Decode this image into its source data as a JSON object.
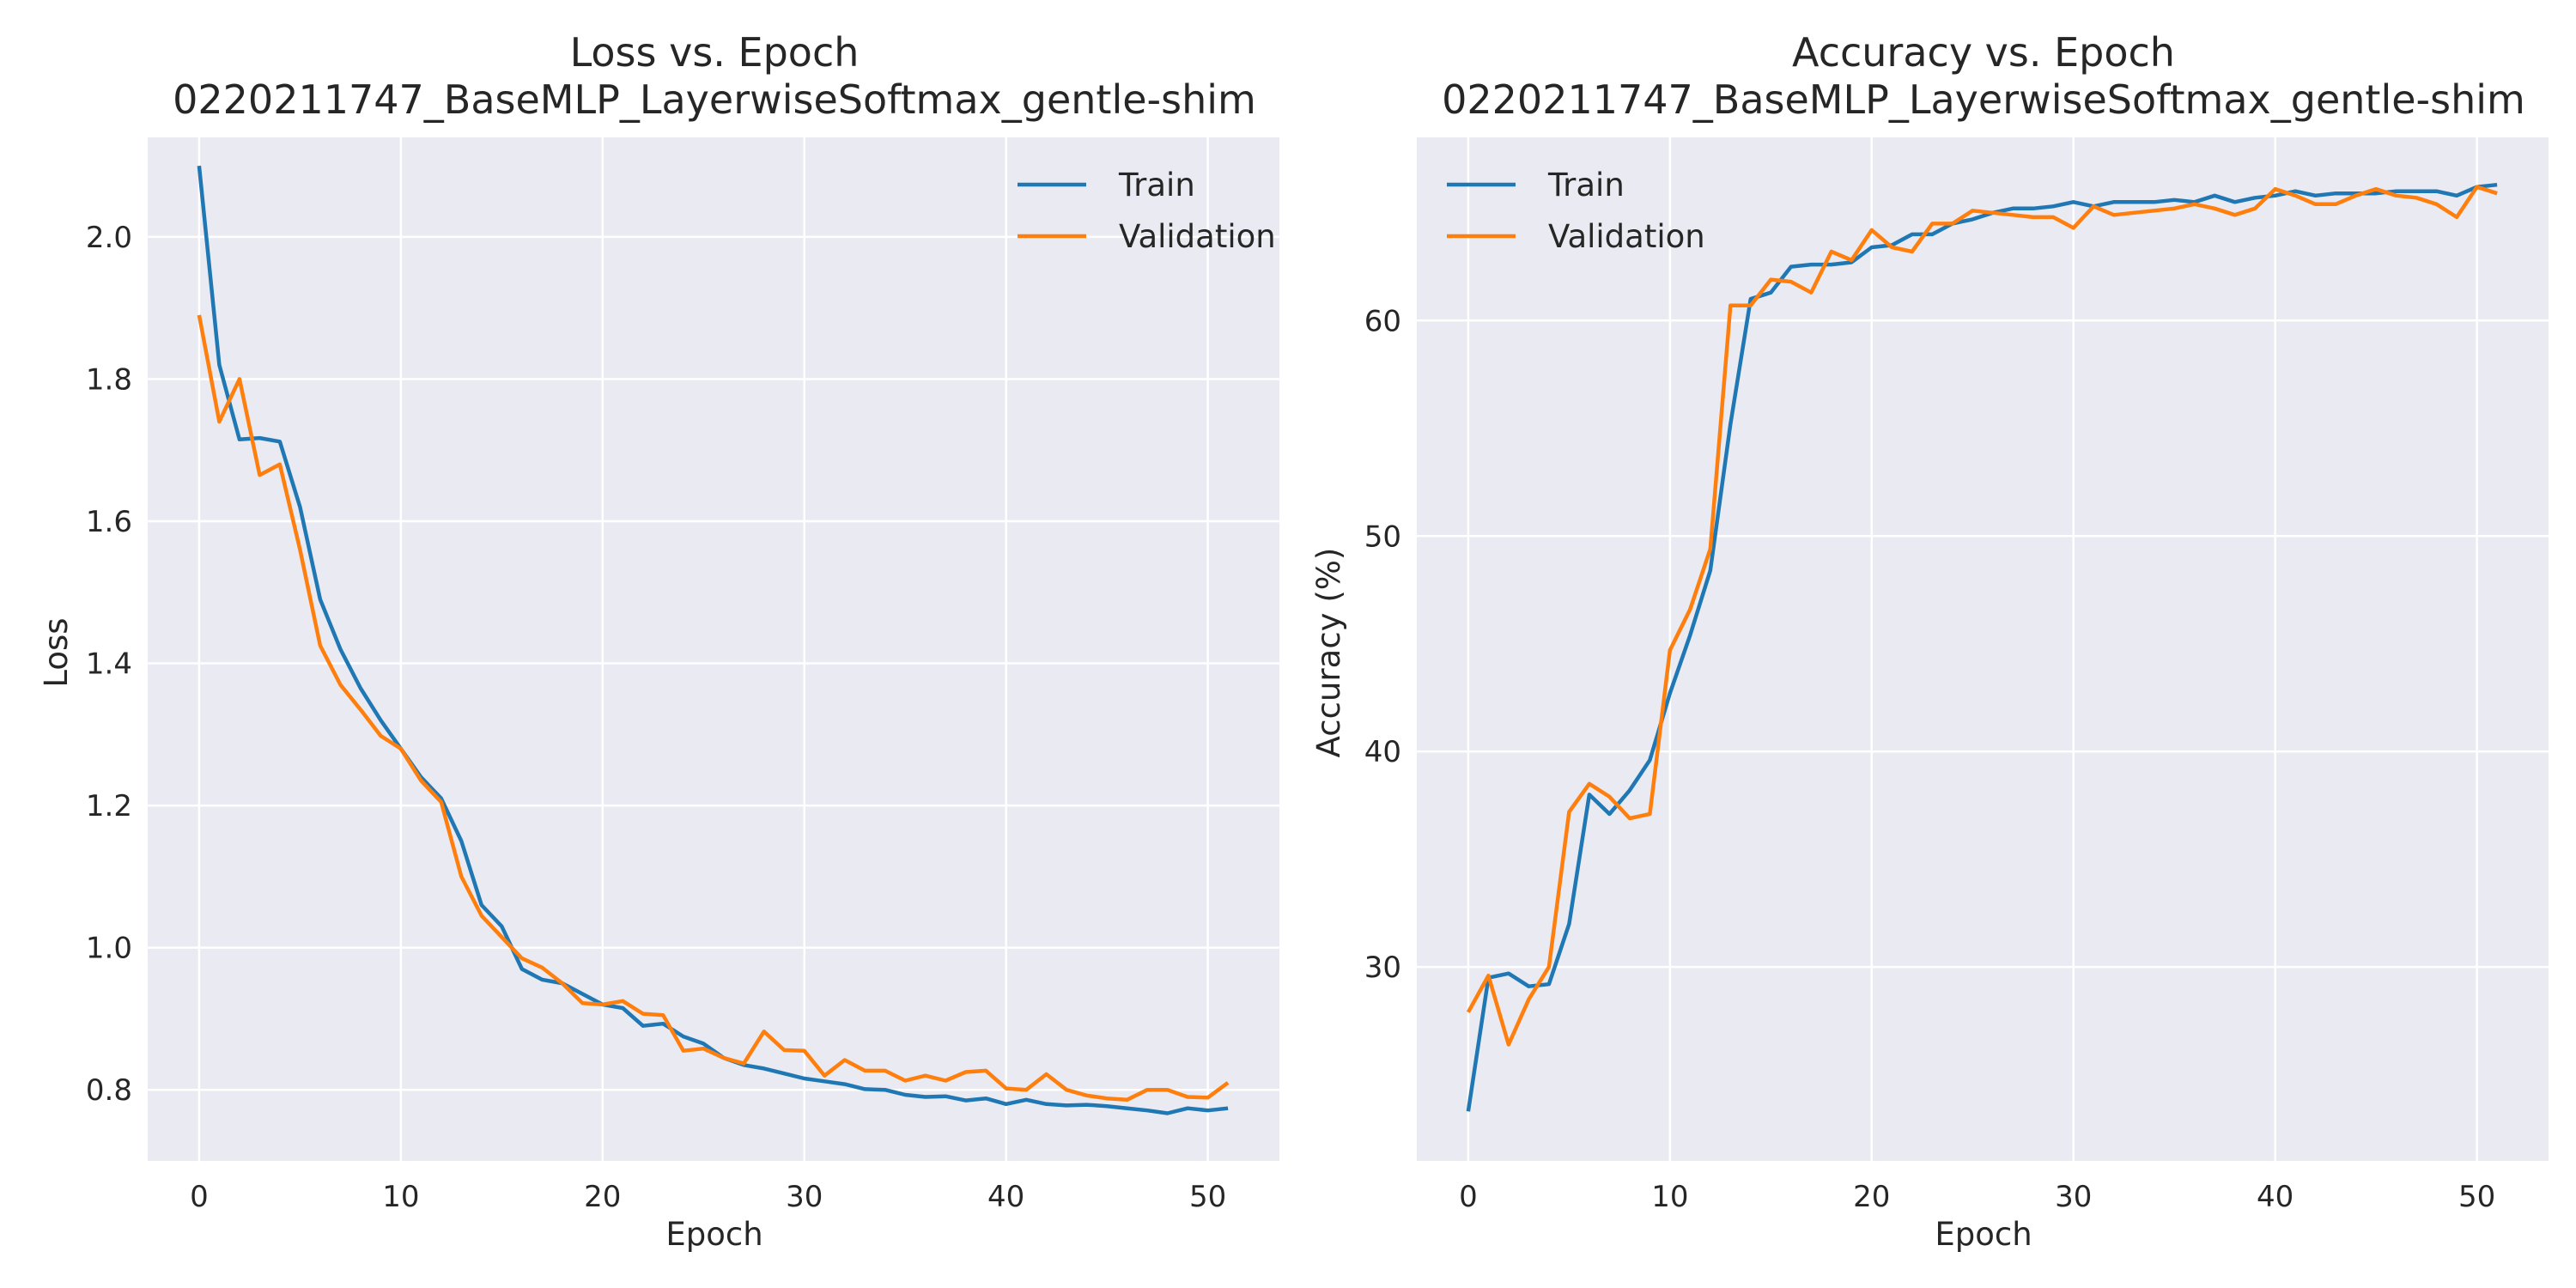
{
  "colors": {
    "background": "#ffffff",
    "plot_bg": "#eaeaf2",
    "grid": "#ffffff",
    "train": "#1f77b4",
    "validation": "#ff7f0e",
    "text": "#262626"
  },
  "chart_data": [
    {
      "type": "line",
      "title": "Loss vs. Epoch",
      "subtitle": "0220211747_BaseMLP_LayerwiseSoftmax_gentle-shim",
      "xlabel": "Epoch",
      "ylabel": "Loss",
      "xlim": [
        -2.55,
        53.55
      ],
      "ylim": [
        0.7,
        2.14
      ],
      "xticks": [
        0,
        10,
        20,
        30,
        40,
        50
      ],
      "xtick_labels": [
        "0",
        "10",
        "20",
        "30",
        "40",
        "50"
      ],
      "yticks": [
        0.8,
        1.0,
        1.2,
        1.4,
        1.6,
        1.8,
        2.0
      ],
      "ytick_labels": [
        "0.8",
        "1.0",
        "1.2",
        "1.4",
        "1.6",
        "1.8",
        "2.0"
      ],
      "grid": true,
      "legend": "upper right",
      "x": [
        0,
        1,
        2,
        3,
        4,
        5,
        6,
        7,
        8,
        9,
        10,
        11,
        12,
        13,
        14,
        15,
        16,
        17,
        18,
        19,
        20,
        21,
        22,
        23,
        24,
        25,
        26,
        27,
        28,
        29,
        30,
        31,
        32,
        33,
        34,
        35,
        36,
        37,
        38,
        39,
        40,
        41,
        42,
        43,
        44,
        45,
        46,
        47,
        48,
        49,
        50,
        51
      ],
      "series": [
        {
          "name": "Train",
          "color": "#1f77b4",
          "values": [
            2.1,
            1.82,
            1.715,
            1.717,
            1.712,
            1.62,
            1.49,
            1.42,
            1.365,
            1.32,
            1.28,
            1.24,
            1.21,
            1.15,
            1.06,
            1.03,
            0.97,
            0.955,
            0.95,
            0.935,
            0.92,
            0.915,
            0.89,
            0.893,
            0.875,
            0.865,
            0.845,
            0.835,
            0.83,
            0.823,
            0.816,
            0.812,
            0.808,
            0.801,
            0.8,
            0.793,
            0.79,
            0.791,
            0.785,
            0.788,
            0.78,
            0.786,
            0.78,
            0.778,
            0.779,
            0.777,
            0.774,
            0.771,
            0.767,
            0.774,
            0.771,
            0.774
          ]
        },
        {
          "name": "Validation",
          "color": "#ff7f0e",
          "values": [
            1.89,
            1.74,
            1.8,
            1.665,
            1.68,
            1.56,
            1.425,
            1.37,
            1.335,
            1.298,
            1.28,
            1.235,
            1.205,
            1.1,
            1.045,
            1.015,
            0.985,
            0.972,
            0.95,
            0.922,
            0.92,
            0.925,
            0.907,
            0.905,
            0.855,
            0.858,
            0.845,
            0.837,
            0.882,
            0.856,
            0.855,
            0.82,
            0.842,
            0.827,
            0.827,
            0.813,
            0.82,
            0.813,
            0.825,
            0.827,
            0.802,
            0.8,
            0.822,
            0.8,
            0.792,
            0.788,
            0.786,
            0.8,
            0.8,
            0.79,
            0.789,
            0.81
          ]
        }
      ]
    },
    {
      "type": "line",
      "title": "Accuracy vs. Epoch",
      "subtitle": "0220211747_BaseMLP_LayerwiseSoftmax_gentle-shim",
      "xlabel": "Epoch",
      "ylabel": "Accuracy (%)",
      "xlim": [
        -2.55,
        53.55
      ],
      "ylim": [
        21.0,
        68.5
      ],
      "xticks": [
        0,
        10,
        20,
        30,
        40,
        50
      ],
      "xtick_labels": [
        "0",
        "10",
        "20",
        "30",
        "40",
        "50"
      ],
      "yticks": [
        30,
        40,
        50,
        60
      ],
      "ytick_labels": [
        "30",
        "40",
        "50",
        "60"
      ],
      "grid": true,
      "legend": "upper left",
      "x": [
        0,
        1,
        2,
        3,
        4,
        5,
        6,
        7,
        8,
        9,
        10,
        11,
        12,
        13,
        14,
        15,
        16,
        17,
        18,
        19,
        20,
        21,
        22,
        23,
        24,
        25,
        26,
        27,
        28,
        29,
        30,
        31,
        32,
        33,
        34,
        35,
        36,
        37,
        38,
        39,
        40,
        41,
        42,
        43,
        44,
        45,
        46,
        47,
        48,
        49,
        50,
        51
      ],
      "series": [
        {
          "name": "Train",
          "color": "#1f77b4",
          "values": [
            23.3,
            29.5,
            29.7,
            29.1,
            29.2,
            32.0,
            38.0,
            37.1,
            38.2,
            39.6,
            42.7,
            45.4,
            48.4,
            55.2,
            61.0,
            61.3,
            62.5,
            62.6,
            62.6,
            62.7,
            63.4,
            63.5,
            64.0,
            64.0,
            64.5,
            64.7,
            65.0,
            65.2,
            65.2,
            65.3,
            65.5,
            65.3,
            65.5,
            65.5,
            65.5,
            65.6,
            65.5,
            65.8,
            65.5,
            65.7,
            65.8,
            66.0,
            65.8,
            65.9,
            65.9,
            65.9,
            66.0,
            66.0,
            66.0,
            65.8,
            66.2,
            66.3
          ]
        },
        {
          "name": "Validation",
          "color": "#ff7f0e",
          "values": [
            27.9,
            29.6,
            26.4,
            28.5,
            30.0,
            37.2,
            38.5,
            37.9,
            36.9,
            37.1,
            44.7,
            46.6,
            49.4,
            60.7,
            60.7,
            61.9,
            61.8,
            61.3,
            63.2,
            62.8,
            64.2,
            63.4,
            63.2,
            64.5,
            64.5,
            65.1,
            65.0,
            64.9,
            64.8,
            64.8,
            64.3,
            65.3,
            64.9,
            65.0,
            65.1,
            65.2,
            65.4,
            65.2,
            64.9,
            65.2,
            66.1,
            65.8,
            65.4,
            65.4,
            65.8,
            66.1,
            65.8,
            65.7,
            65.4,
            64.8,
            66.2,
            65.9
          ]
        }
      ]
    }
  ]
}
